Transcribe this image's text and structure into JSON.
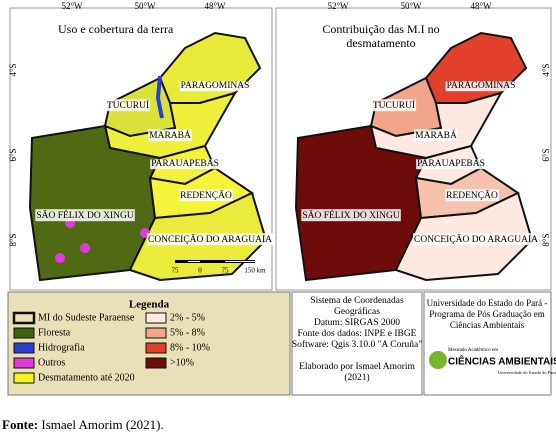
{
  "maps": [
    {
      "title": [
        "Uso e cobertura da terra"
      ],
      "lon_labels": [
        "52°W",
        "50°W",
        "48°W"
      ],
      "lat_labels": [
        "4°S",
        "6°S",
        "8°S"
      ],
      "regions": [
        {
          "label": "PARAGOMINAS",
          "color": "#e8ea3a"
        },
        {
          "label": "TUCURUÍ",
          "color": "#d9e23a"
        },
        {
          "label": "MARABÁ",
          "color": "#eef03a"
        },
        {
          "label": "PARAUAPEBAS",
          "color": "#f2f23a"
        },
        {
          "label": "SÃO FÉLIX DO XINGU",
          "color": "#4f6a12"
        },
        {
          "label": "REDENÇÃO",
          "color": "#f4f43a"
        },
        {
          "label": "CONCEIÇÃO DO ARAGUAIA",
          "color": "#e9ec3a"
        }
      ],
      "scale": [
        "75",
        "0",
        "75",
        "150 km"
      ]
    },
    {
      "title": [
        "Contribuição das M.I no",
        "desmatamento"
      ],
      "lon_labels": [
        "52°W",
        "50°W",
        "48°W"
      ],
      "lat_labels": [
        "4°S",
        "6°S",
        "8°S"
      ],
      "regions": [
        {
          "label": "PARAGOMINAS",
          "color": "#e2402c"
        },
        {
          "label": "TUCURUÍ",
          "color": "#f3a58b"
        },
        {
          "label": "MARABÁ",
          "color": "#fde9e1"
        },
        {
          "label": "PARAUAPEBAS",
          "color": "#fde9e1"
        },
        {
          "label": "SÃO FÉLIX DO XINGU",
          "color": "#6e0c0c"
        },
        {
          "label": "REDENÇÃO",
          "color": "#f6c2ae"
        },
        {
          "label": "CONCEIÇÃO DO ARAGUAIA",
          "color": "#fde9e1"
        }
      ]
    }
  ],
  "legend": {
    "title": "Legenda",
    "items": [
      {
        "label": "MI do Sudeste Paraense",
        "color": "#e9e0b8"
      },
      {
        "label": "2% - 5%",
        "color": "#fde9e1"
      },
      {
        "label": "Floresta",
        "color": "#3f6212"
      },
      {
        "label": "5% - 8%",
        "color": "#f3a58b"
      },
      {
        "label": "Hidrografia",
        "color": "#2a3fd0"
      },
      {
        "label": "8% - 10%",
        "color": "#e2402c"
      },
      {
        "label": "Outros",
        "color": "#e23ad9"
      },
      {
        "label": ">10%",
        "color": "#6e0c0c"
      },
      {
        "label": "Desmatamento até 2020",
        "color": "#f5f51e"
      }
    ]
  },
  "info": [
    "Sistema de Coordenadas",
    "Geográficas",
    "Datum: SIRGAS 2000",
    "Fonte dos dados: INPE e IBGE",
    "Software: Qgis 3.10.0 \"A Coruña\"",
    "",
    "Elaborado por Ismael Amorim",
    "(2021)"
  ],
  "institution": [
    "Universidade do Estado do Pará -",
    "Programa de Pós Graduação em",
    "Ciências Ambientais"
  ],
  "logo": {
    "top": "Mestrado Acadêmico em",
    "main": "CIÊNCIAS AMBIENTAIS",
    "bottom": "Universidade do Estado do Pará"
  },
  "caption": {
    "bold": "Fonte:",
    "text": " Ismael Amorim (2021)."
  }
}
